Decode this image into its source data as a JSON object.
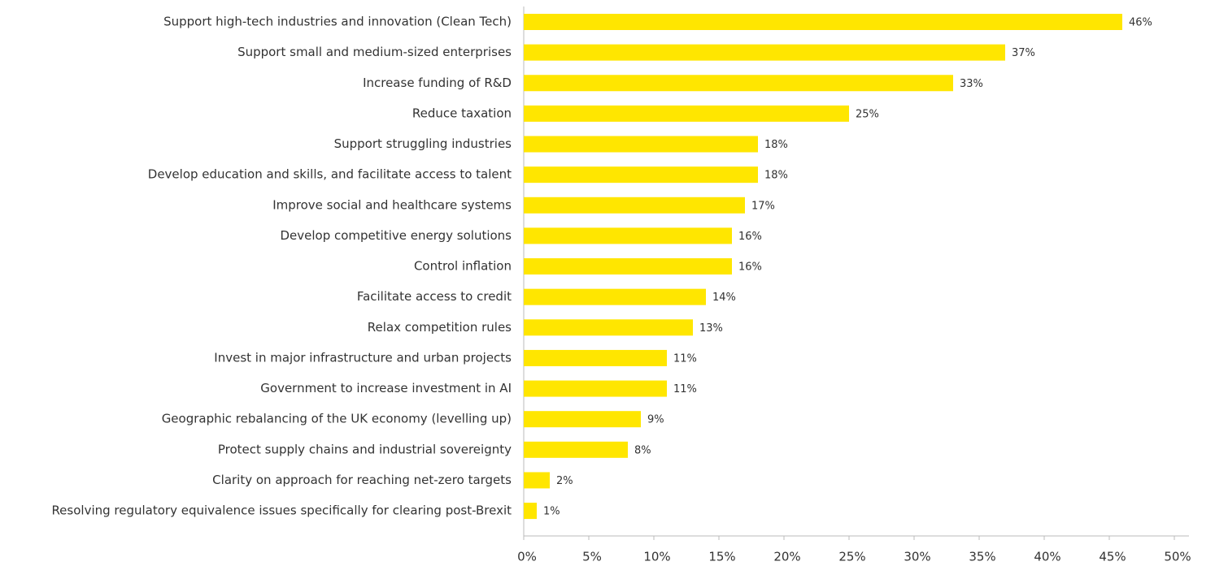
{
  "chart_data": {
    "type": "bar",
    "orientation": "horizontal",
    "color": "#ffe600",
    "categories": [
      "Support high-tech industries and innovation (Clean Tech)",
      "Support small and medium-sized enterprises",
      "Increase funding of R&D",
      "Reduce taxation",
      "Support struggling industries",
      "Develop education and skills, and facilitate access to talent",
      "Improve social and healthcare systems",
      "Develop competitive energy solutions",
      "Control inflation",
      "Facilitate access to credit",
      "Relax competition rules",
      "Invest in major infrastructure and urban projects",
      "Government to increase investment in AI",
      "Geographic rebalancing of the UK economy (levelling up)",
      "Protect supply chains and industrial sovereignty",
      "Clarity on approach for reaching net-zero targets",
      "Resolving regulatory equivalence issues specifically for clearing post-Brexit"
    ],
    "values": [
      46,
      37,
      33,
      25,
      18,
      18,
      17,
      16,
      16,
      14,
      13,
      11,
      11,
      9,
      8,
      2,
      1
    ],
    "value_labels": [
      "46%",
      "37%",
      "33%",
      "25%",
      "18%",
      "18%",
      "17%",
      "16%",
      "16%",
      "14%",
      "13%",
      "11%",
      "11%",
      "9%",
      "8%",
      "2%",
      "1%"
    ],
    "xlim": [
      0,
      50
    ],
    "xticks": [
      {
        "value": 0,
        "label": "0%"
      },
      {
        "value": 5,
        "label": "5%"
      },
      {
        "value": 10,
        "label": "10%"
      },
      {
        "value": 15,
        "label": "15%"
      },
      {
        "value": 20,
        "label": "20%"
      },
      {
        "value": 25,
        "label": "25%"
      },
      {
        "value": 30,
        "label": "30%"
      },
      {
        "value": 35,
        "label": "35%"
      },
      {
        "value": 40,
        "label": "40%"
      },
      {
        "value": 45,
        "label": "45%"
      },
      {
        "value": 50,
        "label": "50%"
      }
    ]
  }
}
